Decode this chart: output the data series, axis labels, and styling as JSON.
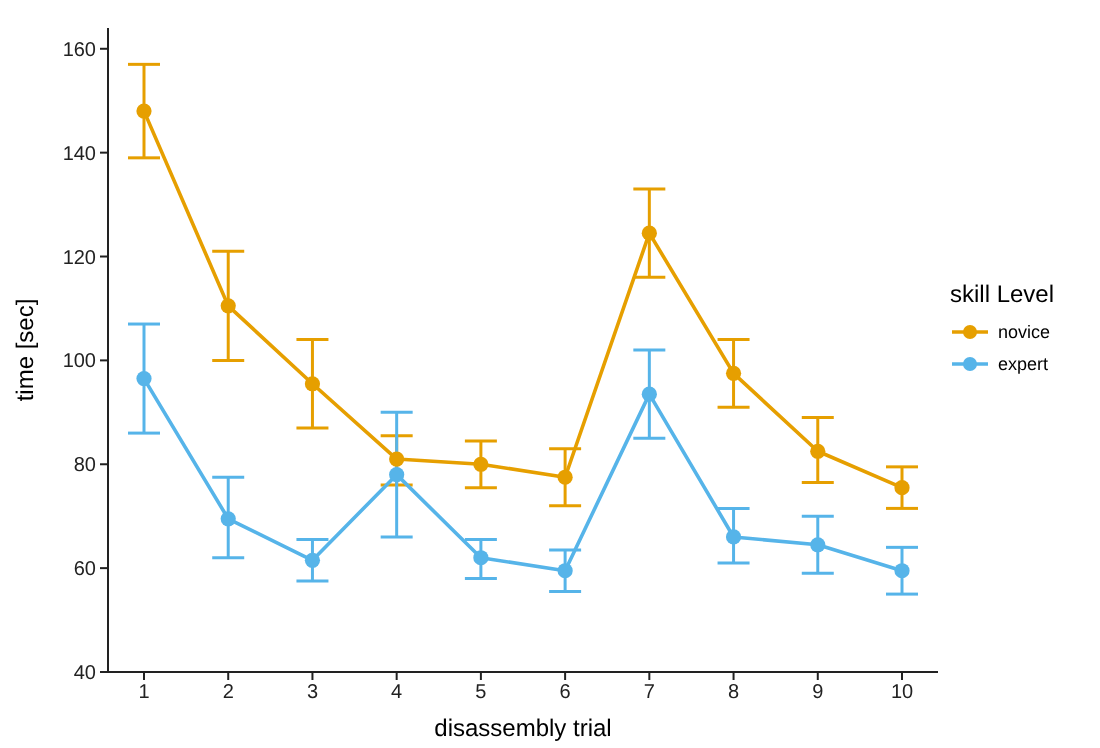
{
  "chart_data": {
    "type": "line",
    "xlabel": "disassembly trial",
    "ylabel": "time [sec]",
    "legend_title": "skill Level",
    "categories": [
      "1",
      "2",
      "3",
      "4",
      "5",
      "6",
      "7",
      "8",
      "9",
      "10"
    ],
    "series": [
      {
        "name": "novice",
        "color": "#e69f00",
        "values": [
          148,
          110.5,
          95.5,
          81,
          80,
          77.5,
          124.5,
          97.5,
          82.5,
          75.5
        ],
        "errors": [
          [
            139,
            157
          ],
          [
            100,
            121
          ],
          [
            87,
            104
          ],
          [
            76,
            85.5
          ],
          [
            75.5,
            84.5
          ],
          [
            72,
            83
          ],
          [
            116,
            133
          ],
          [
            91,
            104
          ],
          [
            76.5,
            89
          ],
          [
            71.5,
            79.5
          ]
        ]
      },
      {
        "name": "expert",
        "color": "#56b4e9",
        "values": [
          96.5,
          69.5,
          61.5,
          78,
          62,
          59.5,
          93.5,
          66,
          64.5,
          59.5
        ],
        "errors": [
          [
            86,
            107
          ],
          [
            62,
            77.5
          ],
          [
            57.5,
            65.5
          ],
          [
            66,
            90
          ],
          [
            58,
            65.5
          ],
          [
            55.5,
            63.5
          ],
          [
            85,
            102
          ],
          [
            61,
            71.5
          ],
          [
            59,
            70
          ],
          [
            55,
            64
          ]
        ]
      }
    ],
    "ylim": [
      40,
      164
    ],
    "yticks": [
      40,
      60,
      80,
      100,
      120,
      140,
      160
    ],
    "grid": false,
    "legend": "right",
    "marker": "circle",
    "line_style": "solid"
  }
}
